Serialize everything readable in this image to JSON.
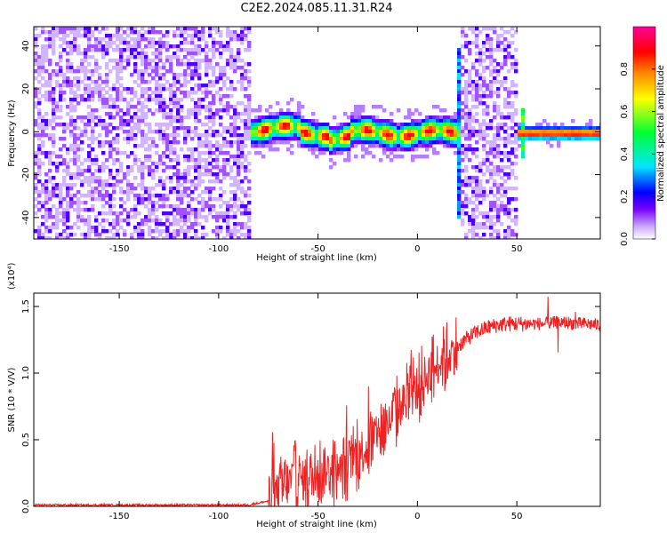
{
  "figure": {
    "title": "C2E2.2024.085.11.31.R24"
  },
  "chart_data": [
    {
      "type": "heatmap",
      "xlabel": "Height of straight line (km)",
      "ylabel": "Frequency (Hz)",
      "xlim": [
        -193,
        92
      ],
      "ylim": [
        -50,
        49
      ],
      "xticks": [
        -150,
        -100,
        -50,
        0,
        50
      ],
      "yticks": [
        -40,
        -20,
        0,
        20,
        40
      ],
      "grid": false,
      "colorbar": {
        "label": "Normalized spectral amplitude",
        "range": [
          0,
          1
        ],
        "ticks": [
          "0.0",
          "0.2",
          "0.4",
          "0.6",
          "0.8"
        ],
        "tick_values": [
          0,
          0.2,
          0.4,
          0.6,
          0.8
        ],
        "colormap": [
          "#ffffff",
          "#c9a6ff",
          "#7a00ff",
          "#0000ff",
          "#00e5ff",
          "#00ff33",
          "#ffff00",
          "#ff8800",
          "#ff0000",
          "#ff0099"
        ]
      },
      "regions": [
        {
          "x": [
            -193,
            -85
          ],
          "type": "broadband_noise"
        },
        {
          "x": [
            -85,
            21
          ],
          "type": "signal_band",
          "freq_center": 0
        },
        {
          "x": [
            21,
            50
          ],
          "type": "broadband_noise"
        },
        {
          "x": [
            50,
            92
          ],
          "type": "narrow_signal",
          "freq_center": 0
        }
      ]
    },
    {
      "type": "line",
      "xlabel": "Height of straight line (km)",
      "ylabel": "SNR (10 * V/V)",
      "y_scale_note": "(x10⁴)",
      "xlim": [
        -193,
        92
      ],
      "ylim": [
        0,
        1.6
      ],
      "xticks": [
        -150,
        -100,
        -50,
        0,
        50
      ],
      "yticks": [
        "0.0",
        "0.5",
        "1.0",
        "1.5"
      ],
      "ytick_values": [
        0,
        0.5,
        1.0,
        1.5
      ],
      "grid": false,
      "color": "#ee2222",
      "series": [
        {
          "x": [
            -193,
            -150,
            -100,
            -85,
            -75,
            -70,
            -65,
            -60,
            -55,
            -50,
            -45,
            -40,
            -35,
            -30,
            -25,
            -20,
            -15,
            -10,
            -5,
            0,
            5,
            10,
            15,
            20,
            25,
            30,
            35,
            40,
            45,
            50,
            55,
            60,
            65,
            70,
            75,
            80,
            85,
            92
          ],
          "y": [
            0.01,
            0.01,
            0.01,
            0.01,
            0.04,
            0.12,
            0.18,
            0.22,
            0.18,
            0.25,
            0.28,
            0.24,
            0.32,
            0.38,
            0.44,
            0.55,
            0.62,
            0.72,
            0.82,
            0.88,
            0.98,
            1.06,
            1.13,
            1.2,
            1.26,
            1.31,
            1.34,
            1.36,
            1.37,
            1.37,
            1.37,
            1.37,
            1.37,
            1.38,
            1.38,
            1.37,
            1.37,
            1.36
          ]
        }
      ]
    }
  ]
}
